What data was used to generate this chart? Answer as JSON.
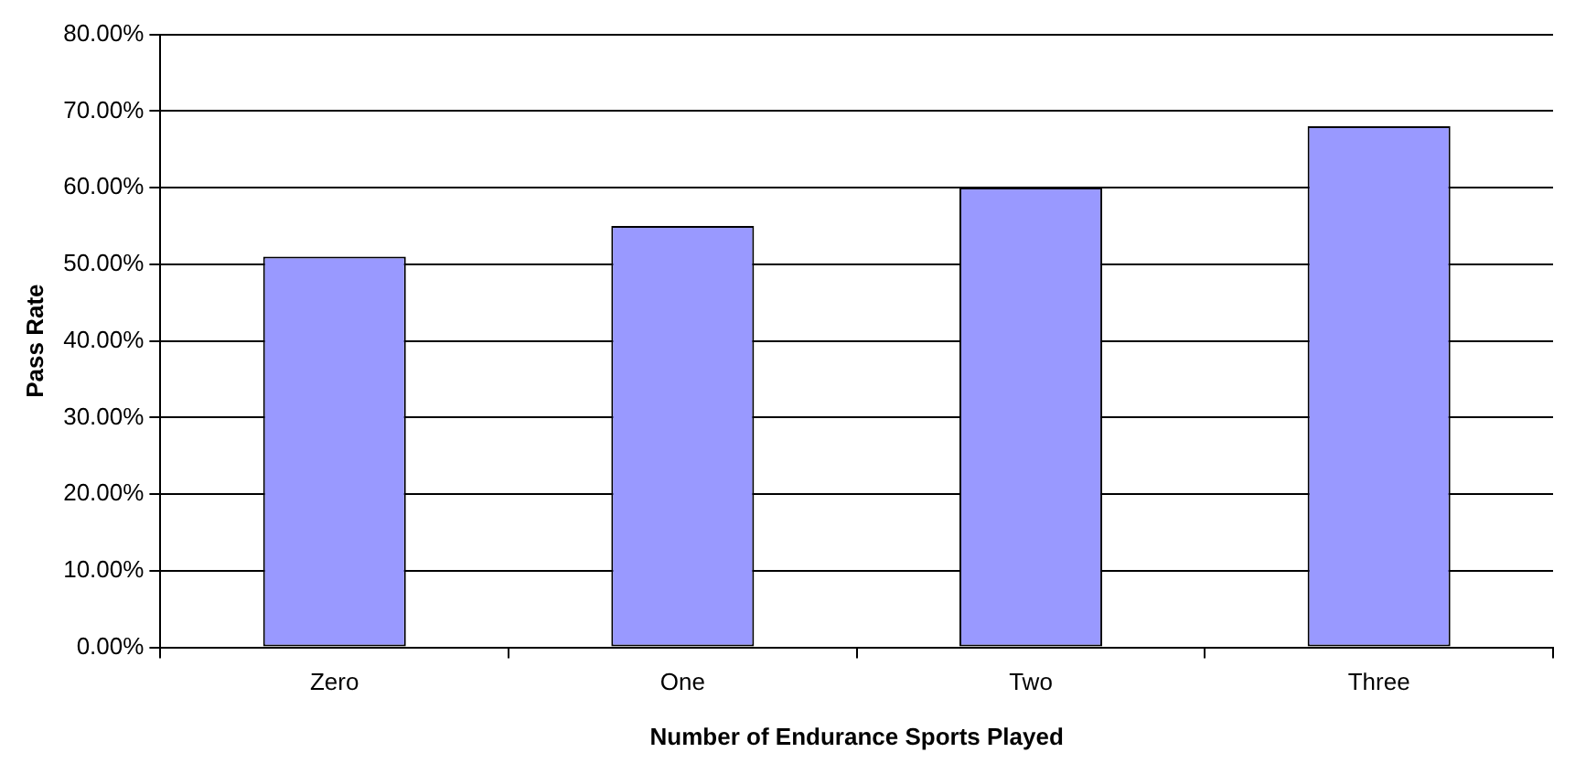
{
  "chart_data": {
    "type": "bar",
    "xlabel": "Number of Endurance Sports Played",
    "ylabel": "Pass Rate",
    "categories": [
      "Zero",
      "One",
      "Two",
      "Three"
    ],
    "values": [
      51,
      55,
      60,
      68
    ],
    "color": "#9999ff",
    "ylim": [
      0,
      80
    ],
    "yticks": [
      {
        "value": 0,
        "label": "0.00%"
      },
      {
        "value": 10,
        "label": "10.00%"
      },
      {
        "value": 20,
        "label": "20.00%"
      },
      {
        "value": 30,
        "label": "30.00%"
      },
      {
        "value": 40,
        "label": "40.00%"
      },
      {
        "value": 50,
        "label": "50.00%"
      },
      {
        "value": 60,
        "label": "60.00%"
      },
      {
        "value": 70,
        "label": "70.00%"
      },
      {
        "value": 80,
        "label": "80.00%"
      }
    ],
    "grid": "y",
    "legend": false
  }
}
